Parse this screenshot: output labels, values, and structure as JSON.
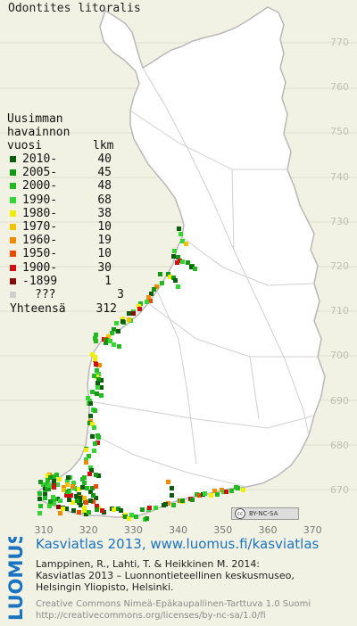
{
  "title": "Odontites litoralis",
  "legend": {
    "header_lines": [
      "Uusimman",
      "havainnon",
      "vuosi"
    ],
    "count_header": "lkm",
    "items": [
      {
        "label": "2010-",
        "count": "40",
        "color": "#0c5e0c"
      },
      {
        "label": "2005-",
        "count": "45",
        "color": "#119a11"
      },
      {
        "label": "2000-",
        "count": "48",
        "color": "#22bb22"
      },
      {
        "label": "1990-",
        "count": "68",
        "color": "#33d633"
      },
      {
        "label": "1980-",
        "count": "38",
        "color": "#f2ee00"
      },
      {
        "label": "1970-",
        "count": "10",
        "color": "#f5c200"
      },
      {
        "label": "1960-",
        "count": "19",
        "color": "#f28a00"
      },
      {
        "label": "1950-",
        "count": "10",
        "color": "#ee4a00"
      },
      {
        "label": "1900-",
        "count": "30",
        "color": "#d01010"
      },
      {
        "label": "-1899",
        "count": "1",
        "color": "#8a0a0a"
      },
      {
        "label": "???",
        "count": "3",
        "color": "#cfcfcf"
      }
    ],
    "total_label": "Yhteensä",
    "total_count": "312"
  },
  "axes": {
    "y_ticks": [
      "770",
      "760",
      "750",
      "740",
      "730",
      "720",
      "710",
      "700",
      "690",
      "680",
      "670"
    ],
    "x_ticks": [
      "310",
      "320",
      "330",
      "340",
      "350",
      "360",
      "370"
    ]
  },
  "license_badge": {
    "mark": "cc",
    "text": "BY-NC-SA"
  },
  "footer": {
    "logo_text": "LUOMUS",
    "link_line": "Kasviatlas 2013, www.luomus.fi/kasviatlas",
    "citation_lines": [
      "Lamppinen, R., Lahti, T. & Heikkinen M. 2014:",
      "Kasviatlas 2013 – Luonnontieteellinen keskusmuseo,",
      "Helsingin Yliopisto, Helsinki."
    ],
    "license_lines": [
      "Creative Commons Nimeä-Epäkaupallinen-Tarttuva 1.0 Suomi",
      "http://creativecommons.org/licenses/by-nc-sa/1.0/fi"
    ]
  },
  "colors": {
    "background": "#f2f2e4",
    "land": "#ffffff",
    "border": "#b8b8b8",
    "footer_link": "#1a73c2",
    "logo": "#1a73c2"
  }
}
